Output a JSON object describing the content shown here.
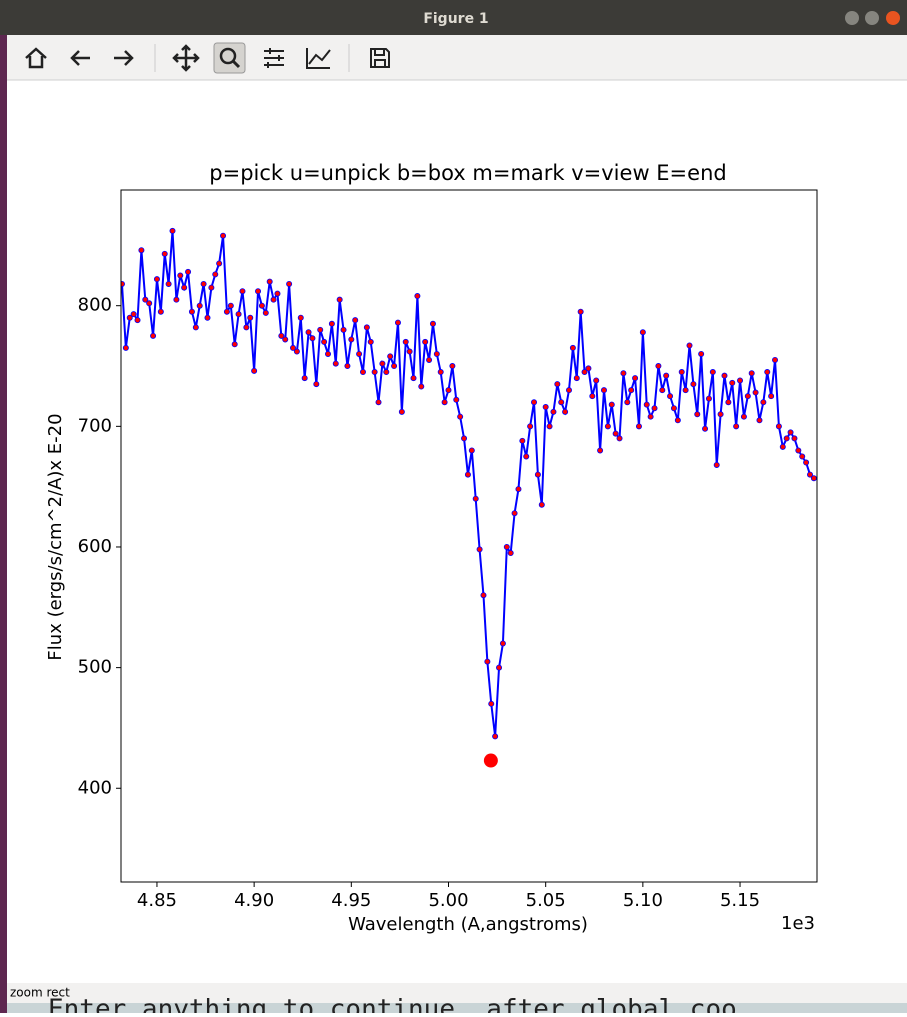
{
  "window": {
    "title": "Figure 1",
    "status": "zoom rect",
    "terminal": "Enter anything to continue. after   global coo"
  },
  "chart_data": {
    "type": "line",
    "title": "p=pick u=unpick b=box m=mark v=view E=end",
    "xlabel": "Wavelength (A,angstroms)",
    "ylabel": "Flux (ergs/s/cm^2/A)x E-20",
    "x_offset_label": "1e3",
    "xlim": [
      4831.5,
      5189.6
    ],
    "ylim": [
      322.3,
      895.9
    ],
    "xticks": [
      {
        "value": 4850,
        "label": "4.85"
      },
      {
        "value": 4900,
        "label": "4.90"
      },
      {
        "value": 4950,
        "label": "4.95"
      },
      {
        "value": 5000,
        "label": "5.00"
      },
      {
        "value": 5050,
        "label": "5.05"
      },
      {
        "value": 5100,
        "label": "5.10"
      },
      {
        "value": 5150,
        "label": "5.15"
      }
    ],
    "yticks": [
      400,
      500,
      600,
      700,
      800
    ],
    "x": [
      4832,
      4834,
      4836,
      4838,
      4840,
      4842,
      4844,
      4846,
      4848,
      4850,
      4852,
      4854,
      4856,
      4858,
      4860,
      4862,
      4864,
      4866,
      4868,
      4870,
      4872,
      4874,
      4876,
      4878,
      4880,
      4882,
      4884,
      4886,
      4888,
      4890,
      4892,
      4894,
      4896,
      4898,
      4900,
      4902,
      4904,
      4906,
      4908,
      4910,
      4912,
      4914,
      4916,
      4918,
      4920,
      4922,
      4924,
      4926,
      4928,
      4930,
      4932,
      4934,
      4936,
      4938,
      4940,
      4942,
      4944,
      4946,
      4948,
      4950,
      4952,
      4954,
      4956,
      4958,
      4960,
      4962,
      4964,
      4966,
      4968,
      4970,
      4972,
      4974,
      4976,
      4978,
      4980,
      4982,
      4984,
      4986,
      4988,
      4990,
      4992,
      4994,
      4996,
      4998,
      5000,
      5002,
      5004,
      5006,
      5008,
      5010,
      5012,
      5014,
      5016,
      5018,
      5020,
      5022,
      5024,
      5026,
      5028,
      5030,
      5032,
      5034,
      5036,
      5038,
      5040,
      5042,
      5044,
      5046,
      5048,
      5050,
      5052,
      5054,
      5056,
      5058,
      5060,
      5062,
      5064,
      5066,
      5068,
      5070,
      5072,
      5074,
      5076,
      5078,
      5080,
      5082,
      5084,
      5086,
      5088,
      5090,
      5092,
      5094,
      5096,
      5098,
      5100,
      5102,
      5104,
      5106,
      5108,
      5110,
      5112,
      5114,
      5116,
      5118,
      5120,
      5122,
      5124,
      5126,
      5128,
      5130,
      5132,
      5134,
      5136,
      5138,
      5140,
      5142,
      5144,
      5146,
      5148,
      5150,
      5152,
      5154,
      5156,
      5158,
      5160,
      5162,
      5164,
      5166,
      5168,
      5170,
      5172,
      5174,
      5176,
      5178,
      5180,
      5182,
      5184,
      5186,
      5188
    ],
    "series": [
      {
        "color": "#0000ff",
        "marker_color": "#ff0000",
        "values": [
          818,
          765,
          790,
          793,
          788,
          846,
          805,
          802,
          775,
          822,
          795,
          843,
          818,
          862,
          805,
          825,
          815,
          828,
          795,
          782,
          800,
          818,
          790,
          815,
          826,
          835,
          858,
          795,
          800,
          768,
          793,
          812,
          782,
          790,
          746,
          812,
          800,
          794,
          820,
          805,
          810,
          775,
          772,
          818,
          765,
          762,
          790,
          740,
          778,
          773,
          735,
          780,
          770,
          760,
          785,
          752,
          805,
          780,
          750,
          772,
          788,
          760,
          745,
          782,
          770,
          745,
          720,
          752,
          745,
          758,
          750,
          786,
          712,
          770,
          762,
          740,
          808,
          733,
          770,
          755,
          785,
          760,
          745,
          720,
          730,
          750,
          722,
          708,
          690,
          660,
          680,
          640,
          598,
          560,
          505,
          470,
          443,
          500,
          520,
          600,
          595,
          628,
          648,
          688,
          675,
          700,
          720,
          660,
          635,
          716,
          700,
          712,
          735,
          720,
          712,
          730,
          765,
          740,
          795,
          745,
          748,
          725,
          738,
          680,
          730,
          700,
          718,
          694,
          690,
          744,
          720,
          730,
          740,
          700,
          778,
          718,
          708,
          715,
          750,
          730,
          742,
          725,
          715,
          705,
          745,
          730,
          767,
          735,
          710,
          760,
          698,
          723,
          745,
          668,
          710,
          742,
          720,
          736,
          700,
          738,
          708,
          725,
          744,
          728,
          705,
          720,
          745,
          725,
          755,
          700,
          683,
          690,
          695,
          690,
          680,
          675,
          670,
          660,
          657
        ]
      }
    ],
    "pick": {
      "x": 5021.8,
      "y": 423,
      "color": "#ff0000"
    }
  }
}
